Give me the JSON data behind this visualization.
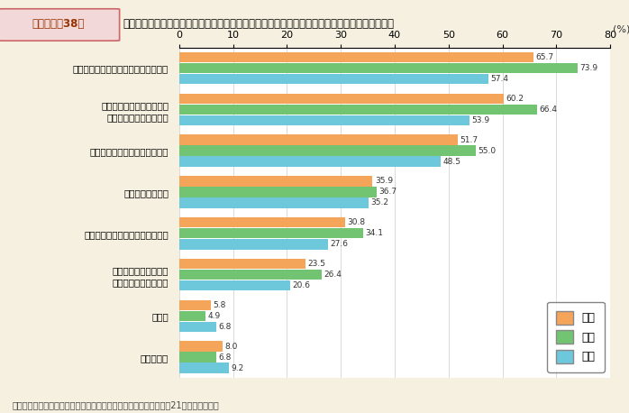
{
  "title_box_text": "第１－特－38図",
  "title_main": "女性が能力開発・発揮がしやすい社会にするために，行政に期待すること（性別）（複数回答）",
  "categories": [
    "仕事と生活を両立しやすい環境づくり",
    "育児等でいったん離職した\n女性に対する支援の拡充",
    "企業や団体トップへの働きかけ",
    "国民への意識啓発",
    "研修等の能力開発支援対策の充実",
    "メンター制度の導入や\nネットワーク形成支援",
    "その他",
    "分からない"
  ],
  "series_order": [
    "総数",
    "女性",
    "男性"
  ],
  "series": {
    "総数": [
      65.7,
      60.2,
      51.7,
      35.9,
      30.8,
      23.5,
      5.8,
      8.0
    ],
    "女性": [
      73.9,
      66.4,
      55.0,
      36.7,
      34.1,
      26.4,
      4.9,
      6.8
    ],
    "男性": [
      57.4,
      53.9,
      48.5,
      35.2,
      27.6,
      20.6,
      6.8,
      9.2
    ]
  },
  "colors": {
    "総数": "#F5A55A",
    "女性": "#72C472",
    "男性": "#6DC8DC"
  },
  "xlim": [
    0,
    80
  ],
  "xticks": [
    0,
    10,
    20,
    30,
    40,
    50,
    60,
    70,
    80
  ],
  "background_color": "#F5F0E0",
  "plot_background": "#FFFFFF",
  "title_box_bg": "#F2D8D8",
  "title_box_border": "#CC6666",
  "footer": "（備考）内閣府「男女のライフスタイルに関する意識調査」（平成21年）より作成。"
}
